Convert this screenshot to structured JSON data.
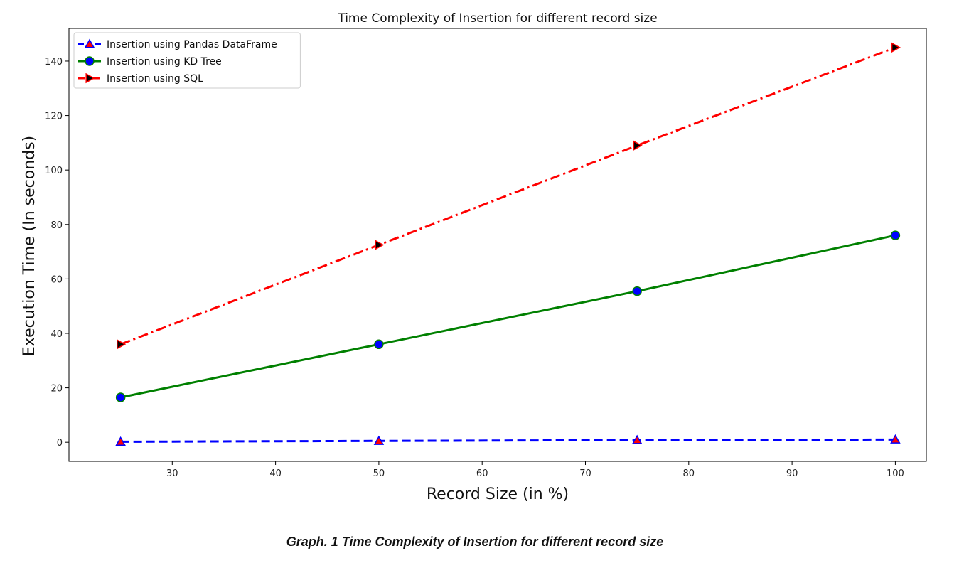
{
  "chart_data": {
    "type": "line",
    "title": "Time Complexity of Insertion for different record size",
    "xlabel": "Record Size (in %)",
    "ylabel": "Execution Time (In seconds)",
    "xlim": [
      20,
      103
    ],
    "ylim": [
      -7,
      152
    ],
    "xticks": [
      30,
      40,
      50,
      60,
      70,
      80,
      90,
      100
    ],
    "yticks": [
      0,
      20,
      40,
      60,
      80,
      100,
      120,
      140
    ],
    "x": [
      25,
      50,
      75,
      100
    ],
    "legend_position": "top-left",
    "grid": false,
    "series": [
      {
        "name": "Insertion using Pandas DataFrame",
        "values": [
          0.2,
          0.5,
          0.8,
          1.0
        ],
        "color": "#0000ff",
        "line_style": "dashed",
        "marker": "triangle-up",
        "marker_fill": "#ff0000",
        "marker_edge": "#0000ff"
      },
      {
        "name": "Insertion using KD Tree",
        "values": [
          16.5,
          36.0,
          55.5,
          76.0
        ],
        "color": "#008000",
        "line_style": "solid",
        "marker": "circle",
        "marker_fill": "#0000ff",
        "marker_edge": "#008000"
      },
      {
        "name": "Insertion using SQL",
        "values": [
          36.0,
          72.5,
          109.0,
          145.0
        ],
        "color": "#ff0000",
        "line_style": "dashdot",
        "marker": "triangle-right",
        "marker_fill": "#000000",
        "marker_edge": "#ff0000"
      }
    ]
  },
  "caption": "Graph. 1 Time Complexity of Insertion for different record size"
}
